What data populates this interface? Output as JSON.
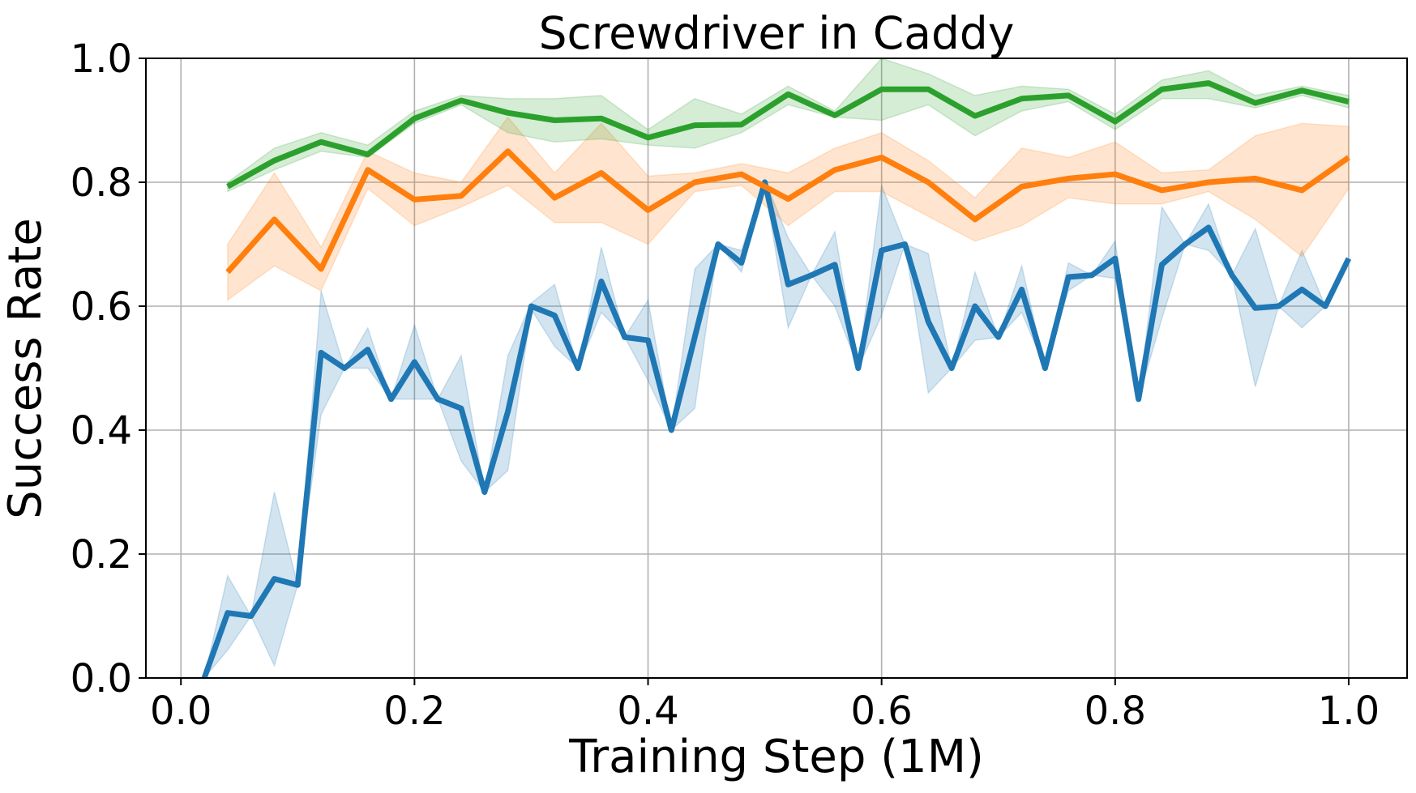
{
  "chart_data": {
    "type": "line",
    "title": "Screwdriver in Caddy",
    "xlabel": "Training Step (1M)",
    "ylabel": "Success Rate",
    "xlim": [
      -0.03,
      1.05
    ],
    "ylim": [
      0.0,
      1.0
    ],
    "xticks": [
      0.0,
      0.2,
      0.4,
      0.6,
      0.8,
      1.0
    ],
    "xtick_labels": [
      "0.0",
      "0.2",
      "0.4",
      "0.6",
      "0.8",
      "1.0"
    ],
    "yticks": [
      0.0,
      0.2,
      0.4,
      0.6,
      0.8,
      1.0
    ],
    "ytick_labels": [
      "0.0",
      "0.2",
      "0.4",
      "0.6",
      "0.8",
      "1.0"
    ],
    "grid": true,
    "legend": false,
    "series": [
      {
        "color": "#1f77b4",
        "x": [
          0.02,
          0.04,
          0.06,
          0.08,
          0.1,
          0.12,
          0.14,
          0.16,
          0.18,
          0.2,
          0.22,
          0.24,
          0.26,
          0.28,
          0.3,
          0.32,
          0.34,
          0.36,
          0.38,
          0.4,
          0.42,
          0.44,
          0.46,
          0.48,
          0.5,
          0.52,
          0.54,
          0.56,
          0.58,
          0.6,
          0.62,
          0.64,
          0.66,
          0.68,
          0.7,
          0.72,
          0.74,
          0.76,
          0.78,
          0.8,
          0.82,
          0.84,
          0.86,
          0.88,
          0.9,
          0.92,
          0.94,
          0.96,
          0.98,
          1.0
        ],
        "y": [
          0.0,
          0.105,
          0.1,
          0.16,
          0.15,
          0.525,
          0.5,
          0.53,
          0.45,
          0.51,
          0.45,
          0.435,
          0.3,
          0.43,
          0.6,
          0.585,
          0.5,
          0.64,
          0.55,
          0.545,
          0.4,
          0.55,
          0.7,
          0.67,
          0.8,
          0.635,
          0.65,
          0.667,
          0.5,
          0.69,
          0.7,
          0.575,
          0.5,
          0.6,
          0.55,
          0.627,
          0.5,
          0.647,
          0.65,
          0.677,
          0.45,
          0.667,
          0.7,
          0.727,
          0.65,
          0.597,
          0.6,
          0.627,
          0.6,
          0.677
        ],
        "lower": [
          0.0,
          0.045,
          0.1,
          0.02,
          0.15,
          0.425,
          0.5,
          0.5,
          0.45,
          0.45,
          0.45,
          0.35,
          0.3,
          0.335,
          0.595,
          0.535,
          0.5,
          0.59,
          0.55,
          0.48,
          0.4,
          0.435,
          0.7,
          0.655,
          0.795,
          0.565,
          0.65,
          0.6,
          0.5,
          0.585,
          0.7,
          0.46,
          0.5,
          0.545,
          0.55,
          0.59,
          0.5,
          0.625,
          0.65,
          0.645,
          0.45,
          0.58,
          0.7,
          0.69,
          0.65,
          0.47,
          0.6,
          0.565,
          0.6,
          0.677
        ],
        "upper": [
          0.0,
          0.165,
          0.1,
          0.3,
          0.15,
          0.625,
          0.5,
          0.565,
          0.45,
          0.57,
          0.45,
          0.52,
          0.3,
          0.52,
          0.605,
          0.635,
          0.5,
          0.695,
          0.55,
          0.61,
          0.4,
          0.66,
          0.7,
          0.69,
          0.805,
          0.71,
          0.65,
          0.72,
          0.5,
          0.795,
          0.7,
          0.685,
          0.5,
          0.655,
          0.55,
          0.665,
          0.5,
          0.67,
          0.65,
          0.705,
          0.45,
          0.76,
          0.7,
          0.765,
          0.65,
          0.725,
          0.6,
          0.69,
          0.6,
          0.677
        ]
      },
      {
        "color": "#ff7f0e",
        "x": [
          0.04,
          0.08,
          0.12,
          0.16,
          0.2,
          0.24,
          0.28,
          0.32,
          0.36,
          0.4,
          0.44,
          0.48,
          0.52,
          0.56,
          0.6,
          0.64,
          0.68,
          0.72,
          0.76,
          0.8,
          0.84,
          0.88,
          0.92,
          0.96,
          1.0
        ],
        "y": [
          0.655,
          0.74,
          0.66,
          0.82,
          0.772,
          0.778,
          0.85,
          0.775,
          0.815,
          0.755,
          0.8,
          0.813,
          0.773,
          0.82,
          0.84,
          0.8,
          0.74,
          0.793,
          0.806,
          0.813,
          0.787,
          0.8,
          0.806,
          0.787,
          0.84
        ],
        "lower": [
          0.61,
          0.665,
          0.625,
          0.79,
          0.73,
          0.76,
          0.795,
          0.735,
          0.735,
          0.7,
          0.785,
          0.795,
          0.73,
          0.785,
          0.785,
          0.745,
          0.705,
          0.73,
          0.775,
          0.765,
          0.765,
          0.785,
          0.74,
          0.68,
          0.79
        ],
        "upper": [
          0.7,
          0.815,
          0.695,
          0.85,
          0.815,
          0.8,
          0.905,
          0.815,
          0.895,
          0.81,
          0.815,
          0.83,
          0.815,
          0.855,
          0.88,
          0.835,
          0.775,
          0.855,
          0.84,
          0.865,
          0.815,
          0.82,
          0.875,
          0.895,
          0.89
        ]
      },
      {
        "color": "#2ca02c",
        "x": [
          0.04,
          0.08,
          0.12,
          0.16,
          0.2,
          0.24,
          0.28,
          0.32,
          0.36,
          0.4,
          0.44,
          0.48,
          0.52,
          0.56,
          0.6,
          0.64,
          0.68,
          0.72,
          0.76,
          0.8,
          0.84,
          0.88,
          0.92,
          0.96,
          1.0
        ],
        "y": [
          0.793,
          0.835,
          0.865,
          0.845,
          0.903,
          0.932,
          0.912,
          0.9,
          0.903,
          0.872,
          0.892,
          0.893,
          0.942,
          0.908,
          0.95,
          0.95,
          0.907,
          0.935,
          0.94,
          0.898,
          0.95,
          0.96,
          0.928,
          0.948,
          0.93
        ],
        "lower": [
          0.785,
          0.82,
          0.85,
          0.84,
          0.895,
          0.925,
          0.88,
          0.865,
          0.87,
          0.86,
          0.855,
          0.88,
          0.925,
          0.905,
          0.9,
          0.925,
          0.875,
          0.915,
          0.93,
          0.885,
          0.935,
          0.935,
          0.92,
          0.94,
          0.92
        ],
        "upper": [
          0.8,
          0.855,
          0.88,
          0.86,
          0.915,
          0.94,
          0.935,
          0.935,
          0.94,
          0.885,
          0.935,
          0.91,
          0.955,
          0.915,
          1.0,
          0.975,
          0.94,
          0.955,
          0.95,
          0.91,
          0.965,
          0.98,
          0.94,
          0.955,
          0.94
        ]
      }
    ]
  }
}
